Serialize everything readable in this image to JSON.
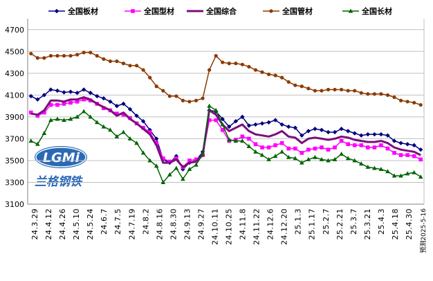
{
  "chart_data": {
    "type": "line",
    "title": "",
    "xlabel": "",
    "ylabel": "",
    "ylim": [
      3100,
      4800
    ],
    "yticks": [
      3100,
      3300,
      3500,
      3700,
      3900,
      4100,
      4300,
      4500,
      4700
    ],
    "ytick_labels": [
      "3100",
      "3300",
      "3500",
      "3700",
      "3900",
      "4100",
      "4300",
      "4500",
      "4700"
    ],
    "grid": true,
    "legend_position": "top",
    "x": [
      "24.3.29",
      "24.4.5",
      "24.4.12",
      "24.4.19",
      "24.4.26",
      "24.5.3",
      "24.5.10",
      "24.5.17",
      "24.5.24",
      "24.5.31",
      "24.6.7",
      "24.6.14",
      "24.6.21",
      "24.6.28",
      "24.7.5",
      "24.7.12",
      "24.7.19",
      "24.7.26",
      "24.8.2",
      "24.8.9",
      "24.8.16",
      "24.8.23",
      "24.8.30",
      "24.9.6",
      "24.9.13",
      "24.9.20",
      "24.9.27",
      "24.10.4",
      "24.10.11",
      "24.10.18",
      "24.10.25",
      "24.11.1",
      "24.11.8",
      "24.11.15",
      "24.11.22",
      "24.11.29",
      "24.12.6",
      "24.12.13",
      "24.12.20",
      "24.12.27",
      "25.1.3",
      "25.1.10",
      "25.1.17",
      "25.1.24",
      "25.1.31",
      "25.2.7",
      "25.2.14",
      "25.2.21",
      "25.2.28",
      "25.3.7",
      "25.3.14",
      "25.3.21",
      "25.3.28",
      "25.4.4",
      "25.4.11",
      "25.4.18",
      "25.4.25",
      "25.4.30",
      "25.5.9",
      "25.5.16"
    ],
    "x_tick_labels": [
      "24.3.29",
      "24.4.12",
      "24.4.26",
      "24.5.10",
      "24.5.24",
      "24.6.7",
      "24.7.5",
      "24.7.19",
      "24.8.2",
      "24.8.16",
      "24.8.30",
      "24.9.13",
      "24.9.27",
      "24.10.11",
      "24.10.25",
      "24.11.8",
      "24.11.22",
      "24.12.6",
      "24.12.20",
      "25.1.3",
      "25.1.17",
      "25.2.7",
      "25.2.21",
      "25.3.7",
      "25.3.21",
      "25.4.3",
      "25.4.18",
      "25.4.30",
      "预测2025-5-16"
    ],
    "series": [
      {
        "name": "全国板材",
        "color": "#000080",
        "marker": "diamond",
        "values": [
          4090,
          4060,
          4100,
          4150,
          4140,
          4125,
          4130,
          4120,
          4150,
          4120,
          4090,
          4070,
          4040,
          4000,
          4020,
          3970,
          3910,
          3860,
          3780,
          3700,
          3510,
          3480,
          3540,
          3420,
          3480,
          3500,
          3580,
          3960,
          3950,
          3880,
          3810,
          3860,
          3900,
          3820,
          3830,
          3840,
          3850,
          3870,
          3830,
          3810,
          3800,
          3730,
          3770,
          3790,
          3780,
          3760,
          3760,
          3790,
          3770,
          3750,
          3730,
          3740,
          3740,
          3740,
          3730,
          3680,
          3660,
          3650,
          3640,
          3600
        ]
      },
      {
        "name": "全国型材",
        "color": "#ff00ff",
        "marker": "square",
        "values": [
          3940,
          3910,
          3940,
          4010,
          4010,
          4020,
          4030,
          4040,
          4060,
          4050,
          4020,
          3980,
          3960,
          3930,
          3920,
          3890,
          3840,
          3800,
          3760,
          3660,
          3520,
          3490,
          3520,
          3440,
          3500,
          3510,
          3550,
          3870,
          3870,
          3780,
          3680,
          3690,
          3720,
          3700,
          3650,
          3620,
          3620,
          3640,
          3660,
          3610,
          3610,
          3570,
          3600,
          3610,
          3620,
          3600,
          3620,
          3680,
          3650,
          3640,
          3640,
          3620,
          3620,
          3640,
          3610,
          3570,
          3550,
          3550,
          3540,
          3510
        ]
      },
      {
        "name": "全国综合",
        "color": "#7b0f7b",
        "marker": "none",
        "values": [
          3930,
          3920,
          3960,
          4050,
          4050,
          4040,
          4060,
          4060,
          4080,
          4060,
          4020,
          3990,
          3960,
          3910,
          3940,
          3880,
          3840,
          3790,
          3740,
          3640,
          3480,
          3480,
          3510,
          3440,
          3480,
          3490,
          3550,
          3960,
          3920,
          3830,
          3770,
          3800,
          3830,
          3770,
          3740,
          3730,
          3720,
          3740,
          3770,
          3720,
          3710,
          3660,
          3700,
          3710,
          3700,
          3690,
          3700,
          3720,
          3710,
          3690,
          3680,
          3670,
          3670,
          3680,
          3660,
          3620,
          3600,
          3590,
          3580,
          3550
        ]
      },
      {
        "name": "全国管材",
        "color": "#8b3a00",
        "marker": "circle",
        "values": [
          4480,
          4440,
          4440,
          4460,
          4460,
          4460,
          4460,
          4470,
          4490,
          4490,
          4460,
          4430,
          4410,
          4410,
          4390,
          4370,
          4370,
          4330,
          4260,
          4180,
          4140,
          4090,
          4090,
          4050,
          4040,
          4050,
          4070,
          4330,
          4460,
          4400,
          4390,
          4390,
          4380,
          4360,
          4330,
          4310,
          4290,
          4280,
          4260,
          4220,
          4190,
          4180,
          4160,
          4140,
          4140,
          4150,
          4150,
          4150,
          4140,
          4140,
          4120,
          4110,
          4110,
          4110,
          4100,
          4080,
          4050,
          4040,
          4030,
          4010
        ]
      },
      {
        "name": "全国长材",
        "color": "#006400",
        "marker": "triangle",
        "values": [
          3680,
          3650,
          3750,
          3870,
          3880,
          3870,
          3880,
          3900,
          3950,
          3900,
          3850,
          3810,
          3780,
          3720,
          3760,
          3700,
          3660,
          3570,
          3500,
          3450,
          3300,
          3370,
          3430,
          3330,
          3420,
          3460,
          3560,
          4000,
          3960,
          3830,
          3690,
          3680,
          3680,
          3630,
          3580,
          3550,
          3510,
          3540,
          3580,
          3530,
          3520,
          3480,
          3510,
          3530,
          3510,
          3500,
          3510,
          3560,
          3520,
          3500,
          3470,
          3440,
          3430,
          3420,
          3400,
          3360,
          3360,
          3380,
          3390,
          3350
        ]
      }
    ]
  },
  "watermark": {
    "logo_text": "LGMi",
    "company_name": "兰格钢铁"
  }
}
